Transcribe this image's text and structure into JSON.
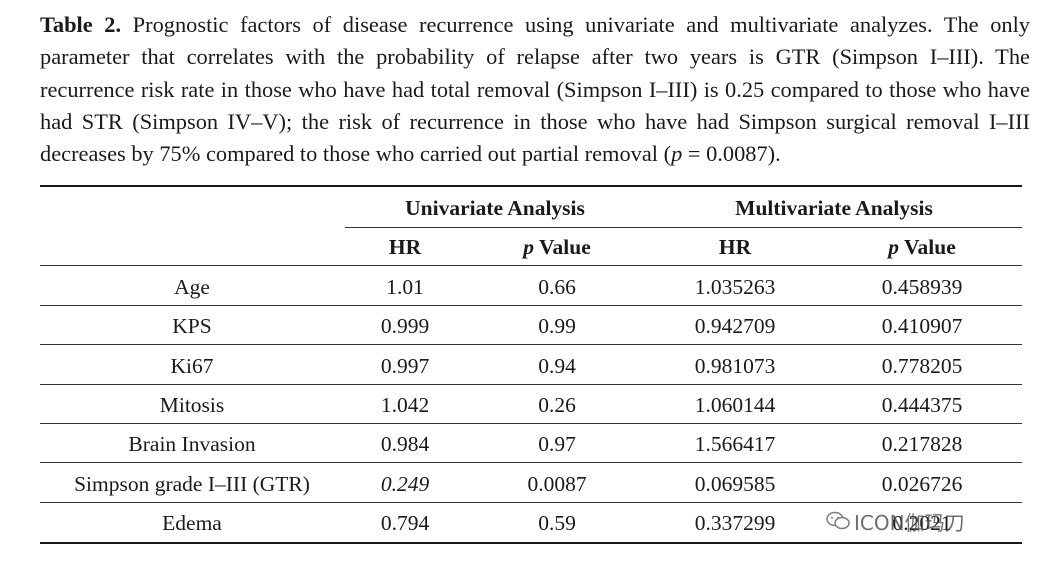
{
  "caption": {
    "label": "Table 2.",
    "text_before_p": " Prognostic factors of disease recurrence using univariate and multivariate analyzes. The only parameter that correlates with the probability of relapse after two years is GTR (Simpson I–III). The recurrence risk rate in those who have had total removal (Simpson I–III) is 0.25 compared to those who have had STR (Simpson IV–V); the risk of recurrence in those who have had Simpson surgical removal I–III decreases by 75% compared to those who carried out partial removal (",
    "p_symbol": "p",
    "text_after_p": " = 0.0087)."
  },
  "table": {
    "group_headers": [
      "Univariate Analysis",
      "Multivariate Analysis"
    ],
    "sub_headers": [
      {
        "prefix": "",
        "italic": "",
        "text": "HR"
      },
      {
        "prefix": "",
        "italic": "p",
        "text": " Value"
      },
      {
        "prefix": "",
        "italic": "",
        "text": "HR"
      },
      {
        "prefix": "",
        "italic": "p",
        "text": " Value"
      }
    ],
    "rows": [
      {
        "factor": "Age",
        "uni_hr": "1.01",
        "uni_p": "0.66",
        "multi_hr": "1.035263",
        "multi_p": "0.458939"
      },
      {
        "factor": "KPS",
        "uni_hr": "0.999",
        "uni_p": "0.99",
        "multi_hr": "0.942709",
        "multi_p": "0.410907"
      },
      {
        "factor": "Ki67",
        "uni_hr": "0.997",
        "uni_p": "0.94",
        "multi_hr": "0.981073",
        "multi_p": "0.778205"
      },
      {
        "factor": "Mitosis",
        "uni_hr": "1.042",
        "uni_p": "0.26",
        "multi_hr": "1.060144",
        "multi_p": "0.444375"
      },
      {
        "factor": "Brain Invasion",
        "uni_hr": "0.984",
        "uni_p": "0.97",
        "multi_hr": "1.566417",
        "multi_p": "0.217828"
      },
      {
        "factor": "Simpson grade I–III (GTR)",
        "uni_hr": "0.249",
        "uni_hr_italic": true,
        "uni_p": "0.0087",
        "multi_hr": "0.069585",
        "multi_p": "0.026726"
      },
      {
        "factor": "Edema",
        "uni_hr": "0.794",
        "uni_p": "0.59",
        "multi_hr": "0.337299",
        "multi_p": "0.2021"
      }
    ]
  },
  "watermark": {
    "icon": "wechat-icon",
    "text": "ICON伽玛刀"
  }
}
